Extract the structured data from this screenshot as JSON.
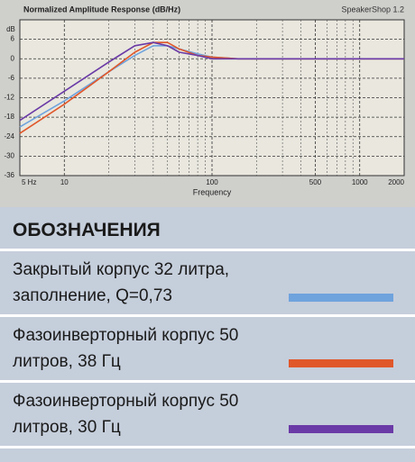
{
  "legend_title": "ОБОЗНАЧЕНИЯ",
  "chart_data": {
    "type": "line",
    "title": "Normalized Amplitude Response (dB/Hz)",
    "subtitle": "SpeakerShop 1.2",
    "x_label": "Frequency",
    "y_label": "dB",
    "log_x": true,
    "grid": true,
    "xlim": [
      5,
      2000
    ],
    "xticks": [
      {
        "value": 5,
        "label": "5 Hz"
      },
      10,
      100,
      500,
      1000,
      2000
    ],
    "xminor": [
      20,
      30,
      40,
      50,
      60,
      70,
      80,
      90,
      200,
      300,
      400,
      600,
      700,
      800,
      900
    ],
    "ylim": [
      -36,
      12
    ],
    "yticks": [
      -36,
      -30,
      -24,
      -18,
      -12,
      -6,
      0,
      6
    ],
    "x": [
      5,
      10,
      20,
      30,
      40,
      50,
      60,
      80,
      100,
      150,
      200,
      500,
      1000,
      2000
    ],
    "series": [
      {
        "name": "Закрытый корпус 32 литра, заполнение, Q=0,73",
        "color": "#6fa3dd",
        "values": [
          -21,
          -13,
          -4,
          1,
          4,
          4,
          3,
          1.5,
          0.5,
          0,
          0,
          0,
          0,
          0
        ]
      },
      {
        "name": "Фазоинверторный корпус 50 литров, 38 Гц",
        "color": "#e0572a",
        "values": [
          -23,
          -14,
          -4,
          2,
          5,
          5,
          3,
          1,
          0.5,
          0,
          0,
          0,
          0,
          0
        ]
      },
      {
        "name": "Фазоинверторный корпус 50 литров, 30 Гц",
        "color": "#6a3aa6",
        "values": [
          -19,
          -10,
          -1,
          4,
          5,
          4,
          2,
          1,
          0,
          0,
          0,
          0,
          0,
          0
        ]
      }
    ]
  }
}
